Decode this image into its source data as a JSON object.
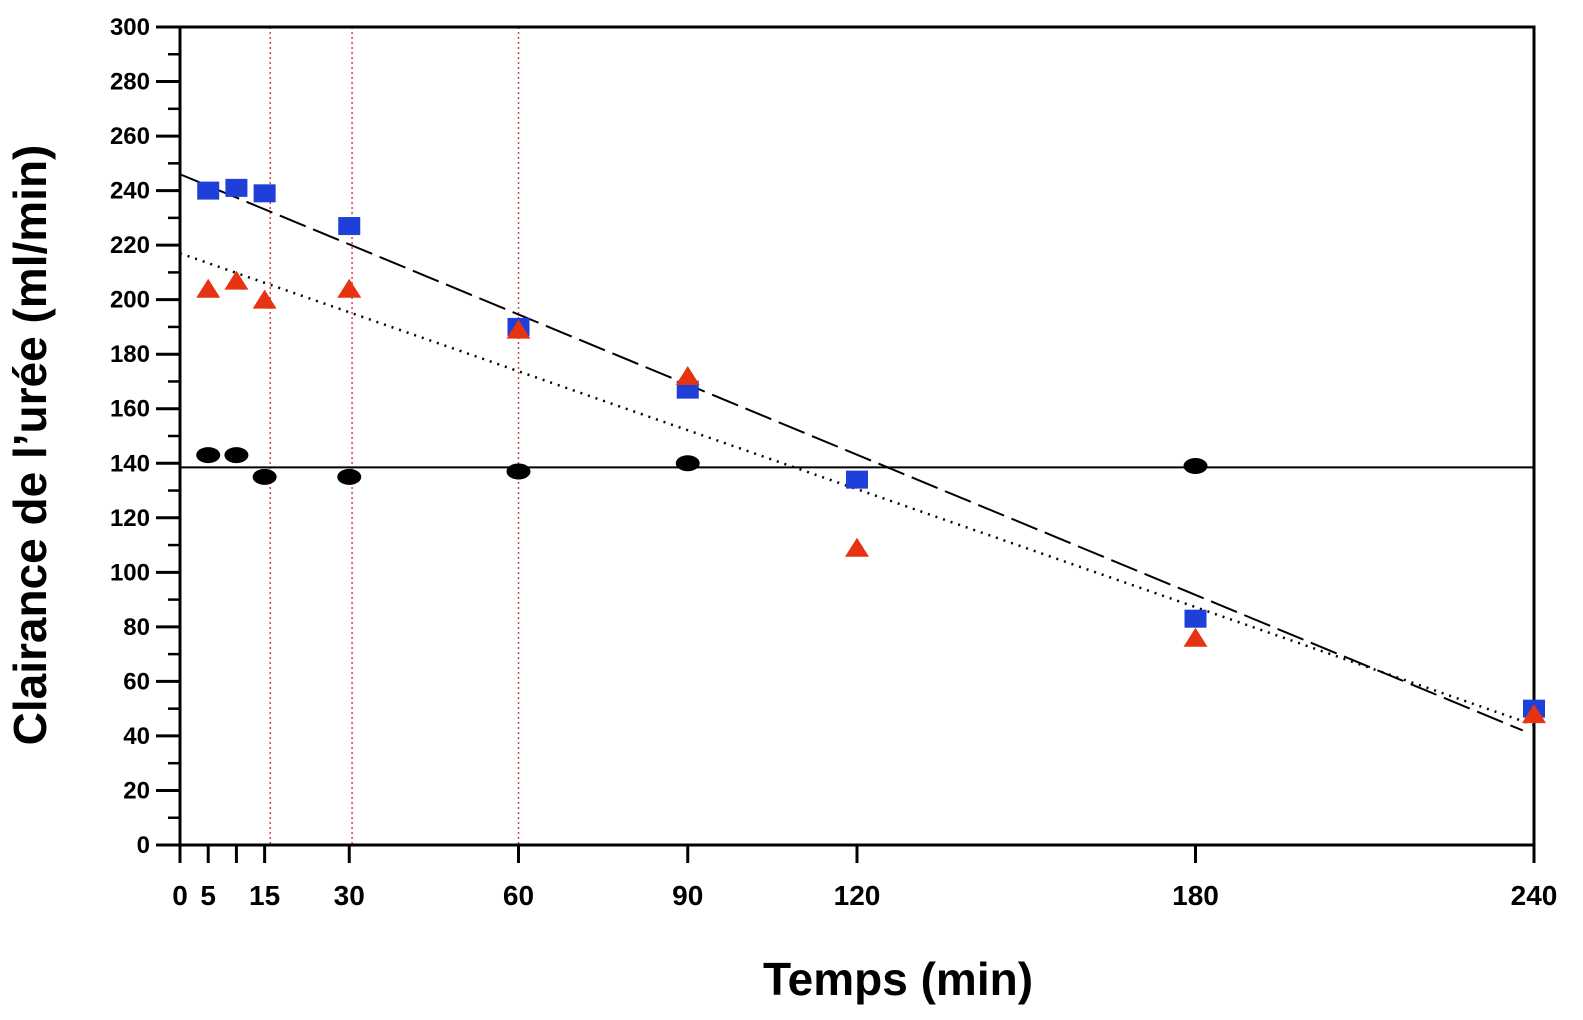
{
  "chart_data": {
    "type": "scatter",
    "title": "",
    "xlabel": "Temps (min)",
    "ylabel": "Clairance de l’urée (ml/min)",
    "xlim": [
      0,
      240
    ],
    "ylim": [
      0,
      300
    ],
    "x_ticks": [
      0,
      5,
      15,
      30,
      60,
      90,
      120,
      180,
      240
    ],
    "x_minor_ticks": [
      10
    ],
    "y_ticks": [
      0,
      20,
      40,
      60,
      80,
      100,
      120,
      140,
      160,
      180,
      200,
      220,
      240,
      260,
      280,
      300
    ],
    "grid": false,
    "legend": "none",
    "reference_vlines": [
      16,
      30.5,
      60
    ],
    "series": [
      {
        "marker": "square",
        "color": "#1f3fd9",
        "points": [
          [
            5,
            240
          ],
          [
            10,
            241
          ],
          [
            15,
            239
          ],
          [
            30,
            227
          ],
          [
            60,
            190
          ],
          [
            90,
            167
          ],
          [
            120,
            134
          ],
          [
            180,
            83
          ],
          [
            240,
            50
          ]
        ]
      },
      {
        "marker": "triangle",
        "color": "#e63312",
        "points": [
          [
            5,
            204
          ],
          [
            10,
            207
          ],
          [
            15,
            200
          ],
          [
            30,
            204
          ],
          [
            60,
            189
          ],
          [
            90,
            172
          ],
          [
            120,
            109
          ],
          [
            180,
            76
          ],
          [
            240,
            48
          ]
        ]
      },
      {
        "marker": "ellipse",
        "color": "#000000",
        "points": [
          [
            5,
            143
          ],
          [
            10,
            143
          ],
          [
            15,
            135
          ],
          [
            30,
            135
          ],
          [
            60,
            137
          ],
          [
            90,
            140
          ],
          [
            180,
            139
          ]
        ]
      }
    ],
    "fits": [
      {
        "style": "dashed",
        "color": "#000000",
        "from": [
          0,
          246
        ],
        "to": [
          238,
          42
        ]
      },
      {
        "style": "dotted",
        "color": "#000000",
        "from": [
          0,
          217
        ],
        "to": [
          240,
          44
        ]
      },
      {
        "style": "solid",
        "color": "#000000",
        "from": [
          0,
          138.5
        ],
        "to": [
          240,
          138.5
        ]
      }
    ]
  }
}
